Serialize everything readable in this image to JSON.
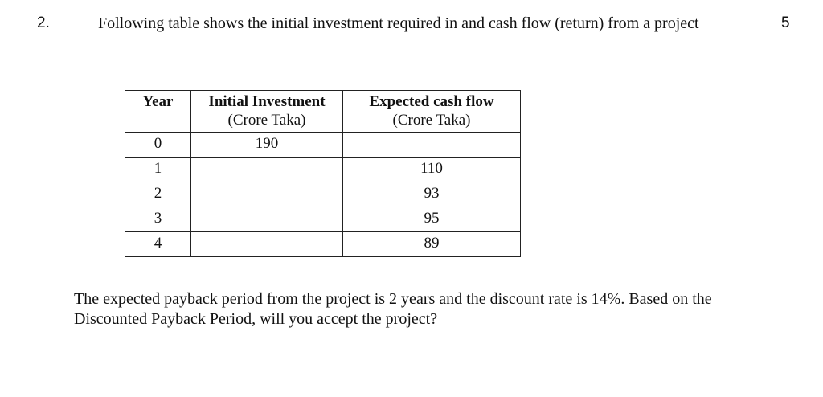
{
  "question": {
    "number": "2.",
    "text": "Following table shows the initial investment required in and cash flow (return) from  a project",
    "marks": "5"
  },
  "table": {
    "headers": [
      {
        "title": "Year",
        "subtitle": ""
      },
      {
        "title": "Initial Investment",
        "subtitle": "(Crore Taka)"
      },
      {
        "title": "Expected cash flow",
        "subtitle": "(Crore Taka)"
      }
    ],
    "rows": [
      [
        "0",
        "190",
        ""
      ],
      [
        "1",
        "",
        "110"
      ],
      [
        "2",
        "",
        "93"
      ],
      [
        "3",
        "",
        "95"
      ],
      [
        "4",
        "",
        "89"
      ]
    ]
  },
  "closing_text": "The expected payback period from the project is 2 years and the discount rate is 14%. Based on the Discounted Payback Period, will you accept the project?"
}
